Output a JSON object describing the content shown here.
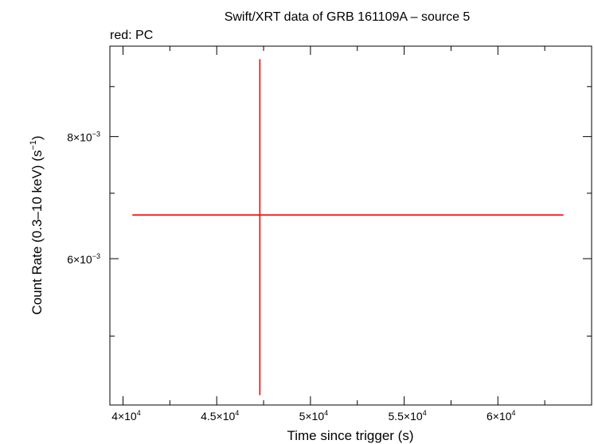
{
  "chart_data": {
    "type": "scatter",
    "title": "Swift/XRT data of GRB 161109A – source 5",
    "subtitle": "red: PC",
    "xlabel": "Time since trigger (s)",
    "ylabel_text": "Count Rate (0.3–10 keV) (s",
    "ylabel_sup": "−1",
    "ylabel_close": ")",
    "xlim": [
      39300,
      65000
    ],
    "ylim_log": [
      0.00425,
      0.0099
    ],
    "x_ticks": [
      {
        "value": 40000,
        "mant": "4×10",
        "exp": "4"
      },
      {
        "value": 45000,
        "mant": "4.5×10",
        "exp": "4"
      },
      {
        "value": 50000,
        "mant": "5×10",
        "exp": "4"
      },
      {
        "value": 55000,
        "mant": "5.5×10",
        "exp": "4"
      },
      {
        "value": 60000,
        "mant": "6×10",
        "exp": "4"
      }
    ],
    "x_minor_ticks": [
      42500,
      47500,
      52500,
      57500,
      62500
    ],
    "y_ticks": [
      {
        "value": 0.006,
        "mant": "6×10",
        "exp": "−3"
      },
      {
        "value": 0.008,
        "mant": "8×10",
        "exp": "−3"
      }
    ],
    "y_minor_ticks": [
      0.005,
      0.007,
      0.009
    ],
    "series": [
      {
        "color": "#ff0000",
        "points": [
          {
            "x": 47300,
            "x_lo": 40500,
            "x_hi": 63500,
            "y": 0.00665,
            "y_lo": 0.00435,
            "y_hi": 0.0096
          }
        ]
      }
    ]
  }
}
